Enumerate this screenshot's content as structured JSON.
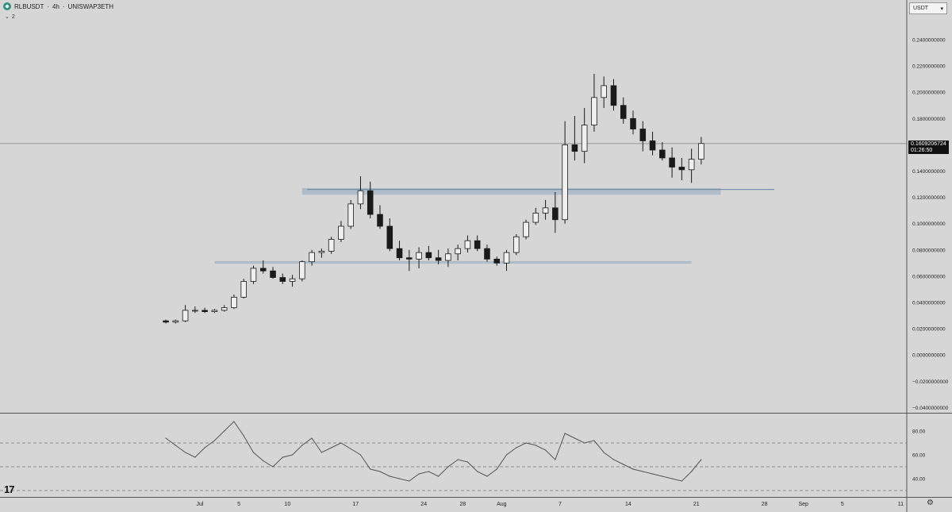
{
  "header": {
    "symbol": "RLBUSDT",
    "separator1": "·",
    "interval": "4h",
    "separator2": "·",
    "exchange": "UNISWAP3ETH",
    "collapse_icon": "chevron-down-icon",
    "indicator_count": "2"
  },
  "currency_select": {
    "value": "USDT"
  },
  "price_tag": {
    "price": "0.1609206724",
    "countdown": "01:26:50"
  },
  "colors": {
    "background": "#d6d6d6",
    "candle": "#1a1a1a",
    "zone_fill": "#a9b9c6",
    "zone_line": "#6d8aa6",
    "grid_separator": "#555555",
    "price_line": "#808080",
    "rsi_line": "#555555"
  },
  "chart_data": [
    {
      "type": "candlestick",
      "pair": "RLBUSDT",
      "interval": "4h",
      "price_axis": {
        "ticks": [
          "0.2400000000",
          "0.2200000000",
          "0.2000000000",
          "0.1800000000",
          "0.1600000000",
          "0.1400000000",
          "0.1200000000",
          "0.1000000000",
          "0.0800000000",
          "0.0600000000",
          "0.0400000000",
          "0.0200000000",
          "0.0000000000",
          "−0.0200000000",
          "−0.0400000000"
        ],
        "tick_values": [
          0.24,
          0.22,
          0.2,
          0.18,
          0.16,
          0.14,
          0.12,
          0.1,
          0.08,
          0.06,
          0.04,
          0.02,
          0.0,
          -0.02,
          -0.04
        ],
        "range": [
          -0.045,
          0.265
        ]
      },
      "time_axis": {
        "labels": [
          "Jul",
          "5",
          "10",
          "17",
          "24",
          "28",
          "Aug",
          "7",
          "14",
          "21",
          "28",
          "Sep",
          "5",
          "11"
        ],
        "label_days": [
          0,
          4,
          9,
          16,
          23,
          27,
          31,
          37,
          44,
          51,
          58,
          62,
          66,
          72
        ]
      },
      "last_price": 0.1609206724,
      "series": [
        {
          "x_days": [
            -3.5,
            -2.5,
            -1.5,
            -0.5,
            0.5,
            1.5,
            2.5,
            3.5,
            4.5,
            5.5,
            6.5,
            7.5,
            8.5,
            9.5,
            10.5,
            11.5,
            12.5,
            13.5,
            14.5,
            15.5,
            16.5,
            17.5,
            18.5,
            19.5,
            20.5,
            21.5,
            22.5,
            23.5,
            24.5,
            25.5,
            26.5,
            27.5,
            28.5,
            29.5,
            30.5,
            31.5,
            32.5,
            33.5,
            34.5,
            35.5,
            36.5,
            37.5,
            38.5,
            39.5,
            40.5,
            41.5,
            42.5,
            43.5,
            44.5,
            45.5,
            46.5,
            47.5,
            48.5,
            49.5,
            50.5,
            51.5
          ],
          "open": [
            0.026,
            0.025,
            0.026,
            0.034,
            0.034,
            0.033,
            0.034,
            0.036,
            0.044,
            0.056,
            0.066,
            0.064,
            0.059,
            0.056,
            0.058,
            0.071,
            0.078,
            0.079,
            0.088,
            0.098,
            0.115,
            0.125,
            0.107,
            0.098,
            0.081,
            0.074,
            0.073,
            0.078,
            0.074,
            0.072,
            0.077,
            0.081,
            0.087,
            0.081,
            0.073,
            0.07,
            0.078,
            0.09,
            0.101,
            0.108,
            0.112,
            0.103,
            0.16,
            0.155,
            0.175,
            0.196,
            0.205,
            0.19,
            0.18,
            0.172,
            0.163,
            0.156,
            0.15,
            0.143,
            0.141,
            0.149
          ],
          "high": [
            0.027,
            0.027,
            0.038,
            0.037,
            0.036,
            0.035,
            0.038,
            0.046,
            0.058,
            0.068,
            0.072,
            0.067,
            0.062,
            0.061,
            0.072,
            0.08,
            0.081,
            0.09,
            0.102,
            0.118,
            0.136,
            0.132,
            0.114,
            0.104,
            0.087,
            0.08,
            0.082,
            0.083,
            0.08,
            0.081,
            0.084,
            0.091,
            0.091,
            0.084,
            0.075,
            0.08,
            0.092,
            0.103,
            0.112,
            0.118,
            0.124,
            0.178,
            0.182,
            0.188,
            0.214,
            0.212,
            0.21,
            0.196,
            0.186,
            0.178,
            0.17,
            0.162,
            0.158,
            0.15,
            0.157,
            0.166
          ],
          "low": [
            0.024,
            0.024,
            0.025,
            0.032,
            0.032,
            0.032,
            0.033,
            0.035,
            0.043,
            0.054,
            0.062,
            0.058,
            0.054,
            0.052,
            0.056,
            0.068,
            0.074,
            0.077,
            0.086,
            0.096,
            0.111,
            0.104,
            0.096,
            0.079,
            0.072,
            0.064,
            0.066,
            0.072,
            0.069,
            0.067,
            0.072,
            0.078,
            0.079,
            0.071,
            0.068,
            0.064,
            0.076,
            0.088,
            0.099,
            0.103,
            0.093,
            0.1,
            0.148,
            0.146,
            0.17,
            0.188,
            0.186,
            0.176,
            0.168,
            0.155,
            0.152,
            0.148,
            0.135,
            0.133,
            0.131,
            0.145
          ],
          "close": [
            0.025,
            0.026,
            0.034,
            0.034,
            0.033,
            0.034,
            0.036,
            0.044,
            0.056,
            0.066,
            0.064,
            0.059,
            0.056,
            0.058,
            0.071,
            0.078,
            0.079,
            0.088,
            0.098,
            0.115,
            0.125,
            0.107,
            0.098,
            0.081,
            0.074,
            0.073,
            0.078,
            0.074,
            0.072,
            0.077,
            0.081,
            0.087,
            0.081,
            0.073,
            0.07,
            0.078,
            0.09,
            0.101,
            0.108,
            0.112,
            0.103,
            0.16,
            0.155,
            0.175,
            0.196,
            0.205,
            0.19,
            0.18,
            0.172,
            0.163,
            0.156,
            0.15,
            0.143,
            0.141,
            0.149,
            0.161
          ]
        }
      ],
      "zones": [
        {
          "from_day": 10.5,
          "to_day": 53.5,
          "low": 0.122,
          "high": 0.127
        },
        {
          "from_day": 1.5,
          "to_day": 50.5,
          "low": 0.0695,
          "high": 0.0715
        }
      ],
      "level_line": {
        "from_day": 11,
        "to_day": 59,
        "value": 0.126
      }
    },
    {
      "type": "line",
      "indicator": "RSI",
      "y_axis": {
        "ticks": [
          "80.00",
          "60.00",
          "40.00"
        ],
        "tick_values": [
          80,
          60,
          40
        ],
        "range": [
          28,
          95
        ]
      },
      "bands": [
        70,
        50,
        30
      ],
      "series": [
        {
          "x_days": [
            -3.5,
            -2.5,
            -1.5,
            -0.5,
            0.5,
            1.5,
            2.5,
            3.5,
            4.5,
            5.5,
            6.5,
            7.5,
            8.5,
            9.5,
            10.5,
            11.5,
            12.5,
            13.5,
            14.5,
            15.5,
            16.5,
            17.5,
            18.5,
            19.5,
            20.5,
            21.5,
            22.5,
            23.5,
            24.5,
            25.5,
            26.5,
            27.5,
            28.5,
            29.5,
            30.5,
            31.5,
            32.5,
            33.5,
            34.5,
            35.5,
            36.5,
            37.5,
            38.5,
            39.5,
            40.5,
            41.5,
            42.5,
            43.5,
            44.5,
            45.5,
            46.5,
            47.5,
            48.5,
            49.5,
            50.5,
            51.5
          ],
          "values": [
            74,
            68,
            62,
            58,
            66,
            72,
            80,
            88,
            76,
            62,
            55,
            50,
            58,
            60,
            68,
            74,
            62,
            66,
            70,
            65,
            60,
            48,
            46,
            42,
            40,
            38,
            44,
            46,
            42,
            50,
            56,
            54,
            46,
            42,
            48,
            60,
            66,
            70,
            68,
            64,
            56,
            78,
            74,
            70,
            72,
            62,
            56,
            52,
            48,
            46,
            44,
            42,
            40,
            38,
            46,
            56
          ]
        }
      ]
    }
  ]
}
